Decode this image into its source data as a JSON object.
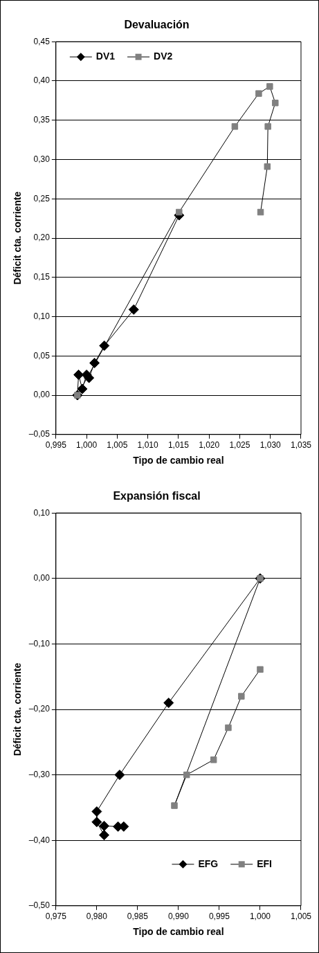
{
  "chart_data": [
    {
      "type": "line",
      "title": "Devaluación",
      "xlabel": "Tipo de cambio real",
      "ylabel": "Déficit cta. corriente",
      "xlim": [
        0.995,
        1.035
      ],
      "xticks": [
        {
          "value": 0.995,
          "label": "0,995"
        },
        {
          "value": 1,
          "label": "1,000"
        },
        {
          "value": 1.005,
          "label": "1,005"
        },
        {
          "value": 1.01,
          "label": "1,010"
        },
        {
          "value": 1.015,
          "label": "1,015"
        },
        {
          "value": 1.02,
          "label": "1,020"
        },
        {
          "value": 1.025,
          "label": "1,025"
        },
        {
          "value": 1.03,
          "label": "1,030"
        },
        {
          "value": 1.035,
          "label": "1,035"
        }
      ],
      "ylim": [
        -0.05,
        0.45
      ],
      "yticks": [
        {
          "value": -0.05,
          "label": "–0,05"
        },
        {
          "value": 0,
          "label": "0,00"
        },
        {
          "value": 0.05,
          "label": "0,05"
        },
        {
          "value": 0.1,
          "label": "0,10"
        },
        {
          "value": 0.15,
          "label": "0,15"
        },
        {
          "value": 0.2,
          "label": "0,20"
        },
        {
          "value": 0.25,
          "label": "0,25"
        },
        {
          "value": 0.3,
          "label": "0,30"
        },
        {
          "value": 0.35,
          "label": "0,35"
        },
        {
          "value": 0.4,
          "label": "0,40"
        },
        {
          "value": 0.45,
          "label": "0,45"
        }
      ],
      "grid": "y",
      "legend": "top left",
      "series": [
        {
          "name": "DV1",
          "color": "#000000",
          "marker": "diamond",
          "x": [
            0.9985,
            0.9987,
            0.9993,
            1.0,
            1.0004,
            1.0013,
            1.0029,
            1.0077,
            1.0151
          ],
          "values": [
            0.0,
            0.026,
            0.008,
            0.026,
            0.022,
            0.041,
            0.063,
            0.109,
            0.229
          ]
        },
        {
          "name": "DV2",
          "color": "#808080",
          "marker": "square",
          "x": [
            0.9985,
            1.0151,
            1.0242,
            1.0281,
            1.0299,
            1.0308,
            1.0296,
            1.0295,
            1.0284
          ],
          "values": [
            0.0,
            0.233,
            0.342,
            0.384,
            0.393,
            0.372,
            0.342,
            0.291,
            0.233
          ]
        }
      ]
    },
    {
      "type": "line",
      "title": "Expansión fiscal",
      "xlabel": "Tipo de cambio real",
      "ylabel": "Déficit cta. corriente",
      "xlim": [
        0.975,
        1.005
      ],
      "xticks": [
        {
          "value": 0.975,
          "label": "0,975"
        },
        {
          "value": 0.98,
          "label": "0,980"
        },
        {
          "value": 0.985,
          "label": "0,985"
        },
        {
          "value": 0.99,
          "label": "0,990"
        },
        {
          "value": 0.995,
          "label": "0,995"
        },
        {
          "value": 1,
          "label": "1,000"
        },
        {
          "value": 1.005,
          "label": "1,005"
        }
      ],
      "ylim": [
        -0.5,
        0.1
      ],
      "yticks": [
        {
          "value": -0.5,
          "label": "–0,50"
        },
        {
          "value": -0.4,
          "label": "–0,40"
        },
        {
          "value": -0.3,
          "label": "–0,30"
        },
        {
          "value": -0.2,
          "label": "–0,20"
        },
        {
          "value": -0.1,
          "label": "–0,10"
        },
        {
          "value": 0,
          "label": "0,00"
        },
        {
          "value": 0.1,
          "label": "0,10"
        }
      ],
      "grid": "y",
      "legend": "bottom right",
      "series": [
        {
          "name": "EFG",
          "color": "#000000",
          "marker": "diamond",
          "x": [
            1.0,
            0.9888,
            0.9828,
            0.98,
            0.98,
            0.9809,
            0.9809,
            0.9826,
            0.9833
          ],
          "values": [
            0.0,
            -0.19,
            -0.3,
            -0.356,
            -0.372,
            -0.392,
            -0.378,
            -0.379,
            -0.379
          ]
        },
        {
          "name": "EFI",
          "color": "#808080",
          "marker": "square",
          "x": [
            1.0,
            0.9895,
            0.991,
            0.9943,
            0.9961,
            0.9977,
            1.0
          ],
          "values": [
            0.0,
            -0.347,
            -0.3,
            -0.277,
            -0.228,
            -0.18,
            -0.139
          ]
        }
      ]
    }
  ]
}
